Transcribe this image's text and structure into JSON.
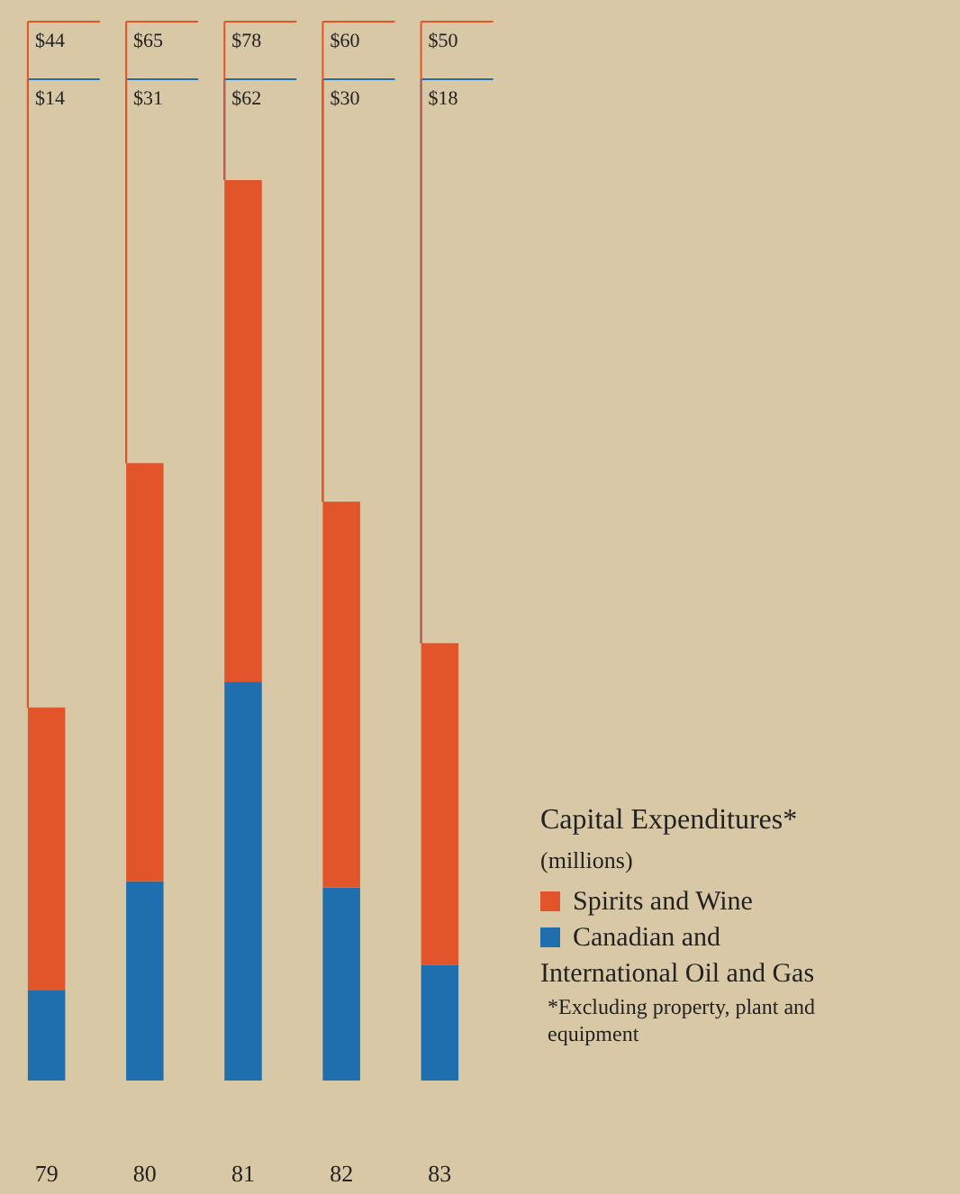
{
  "chart_data": {
    "type": "bar",
    "stacked": true,
    "title": "Capital Expenditures*",
    "subtitle": "(millions)",
    "categories": [
      "79",
      "80",
      "81",
      "82",
      "83"
    ],
    "series": [
      {
        "name": "Canadian and International Oil and Gas",
        "color": "#1f6fae",
        "values": [
          14,
          31,
          62,
          30,
          18
        ],
        "value_labels": [
          "$14",
          "$31",
          "$62",
          "$30",
          "$18"
        ]
      },
      {
        "name": "Spirits and Wine",
        "color": "#e2542a",
        "values": [
          44,
          65,
          78,
          60,
          50
        ],
        "value_labels": [
          "$44",
          "$65",
          "$78",
          "$60",
          "$50"
        ]
      }
    ],
    "legend": "bottom right",
    "annotations": [
      "*Excluding property, plant and equipment"
    ]
  }
}
